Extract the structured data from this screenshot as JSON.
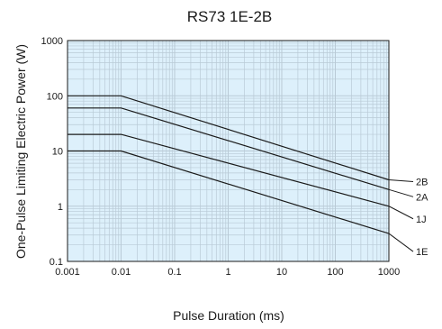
{
  "chart_data": {
    "type": "line",
    "title": "RS73 1E-2B",
    "xlabel": "Pulse Duration (ms)",
    "ylabel": "One-Pulse Limiting Electric Power (W)",
    "xscale": "log",
    "yscale": "log",
    "xlim": [
      0.001,
      1000
    ],
    "ylim": [
      0.1,
      1000
    ],
    "grid": true,
    "x_ticks": [
      "0.001",
      "0.01",
      "0.1",
      "1",
      "10",
      "100",
      "1000"
    ],
    "y_ticks": [
      "0.1",
      "1",
      "10",
      "100",
      "1000"
    ],
    "series": [
      {
        "name": "2B",
        "x": [
          0.001,
          0.01,
          1000
        ],
        "y": [
          100,
          100,
          3
        ]
      },
      {
        "name": "2A",
        "x": [
          0.001,
          0.01,
          1000
        ],
        "y": [
          60,
          60,
          2
        ]
      },
      {
        "name": "1J",
        "x": [
          0.001,
          0.01,
          1000
        ],
        "y": [
          20,
          20,
          1
        ]
      },
      {
        "name": "1E",
        "x": [
          0.001,
          0.01,
          1000
        ],
        "y": [
          10,
          10,
          0.32
        ]
      }
    ],
    "colors": {
      "plot_background": "#ddf0fb",
      "grid": "#b9cad6",
      "line": "#1a1a1a"
    }
  }
}
